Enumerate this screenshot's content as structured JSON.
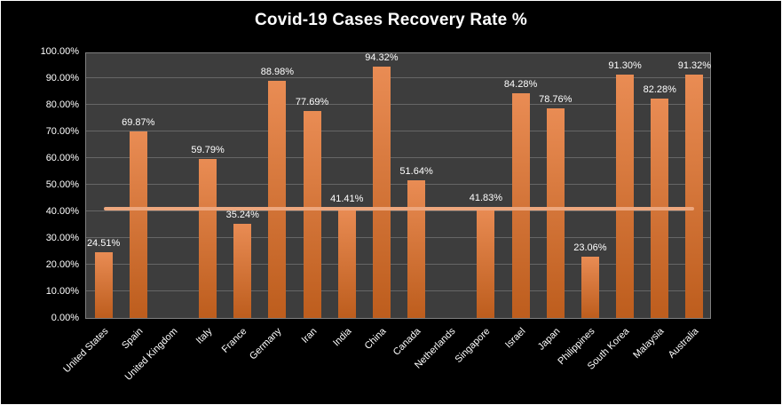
{
  "chart_data": {
    "type": "bar",
    "title": "Covid-19 Cases Recovery Rate %",
    "categories": [
      "United States",
      "Spain",
      "United Kingdom",
      "Italy",
      "France",
      "Germany",
      "Iran",
      "India",
      "China",
      "Canada",
      "Netherlands",
      "Singapore",
      "Israel",
      "Japan",
      "Philippines",
      "South Korea",
      "Malaysia",
      "Australia"
    ],
    "values": [
      24.51,
      69.87,
      0,
      59.79,
      35.24,
      88.98,
      77.69,
      41.41,
      94.32,
      51.64,
      0,
      41.83,
      84.28,
      78.76,
      23.06,
      91.3,
      82.28,
      91.32
    ],
    "data_labels": [
      "24.51%",
      "69.87%",
      "",
      "59.79%",
      "35.24%",
      "88.98%",
      "77.69%",
      "41.41%",
      "94.32%",
      "51.64%",
      "",
      "41.83%",
      "84.28%",
      "78.76%",
      "23.06%",
      "91.30%",
      "82.28%",
      "91.32%"
    ],
    "y_ticks": [
      "100.00%",
      "90.00%",
      "80.00%",
      "70.00%",
      "60.00%",
      "50.00%",
      "40.00%",
      "30.00%",
      "20.00%",
      "10.00%",
      "0.00%"
    ],
    "ylim": [
      0,
      100
    ],
    "grid": true,
    "legend": "none",
    "reference_line": {
      "value": 41.0
    },
    "colors": {
      "background": "#000000",
      "plot_background": "#3d3d3d",
      "plot_border": "#7f7f7f",
      "gridline": "#666666",
      "bar_gradient_top": "#e98c54",
      "bar_gradient_bottom": "#bd5d1d",
      "reference_line": "#eda77e",
      "text": "#ffffff"
    }
  }
}
